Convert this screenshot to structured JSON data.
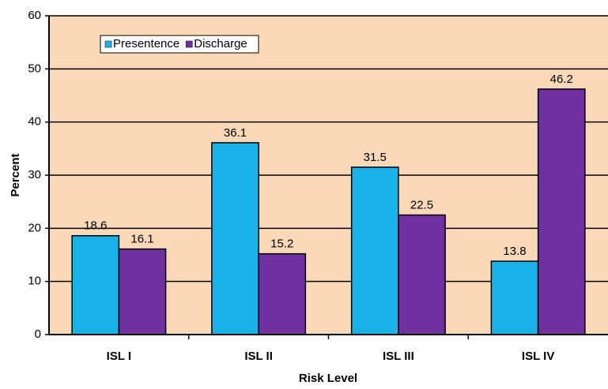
{
  "chart_data": {
    "type": "bar",
    "x_label": "Risk Level",
    "y_label": "Percent",
    "categories": [
      "ISL I",
      "ISL II",
      "ISL III",
      "ISL IV"
    ],
    "series": [
      {
        "name": "Presentence",
        "color": "#1ab2ea",
        "values": [
          18.6,
          36.1,
          31.5,
          13.8
        ]
      },
      {
        "name": "Discharge",
        "color": "#7030a0",
        "values": [
          16.1,
          15.2,
          22.5,
          46.2
        ]
      }
    ],
    "ylim": [
      0,
      60
    ],
    "yticks": [
      0,
      10,
      20,
      30,
      40,
      50,
      60
    ],
    "grid": true,
    "legend": "top-left",
    "background": "#fad9b8"
  }
}
